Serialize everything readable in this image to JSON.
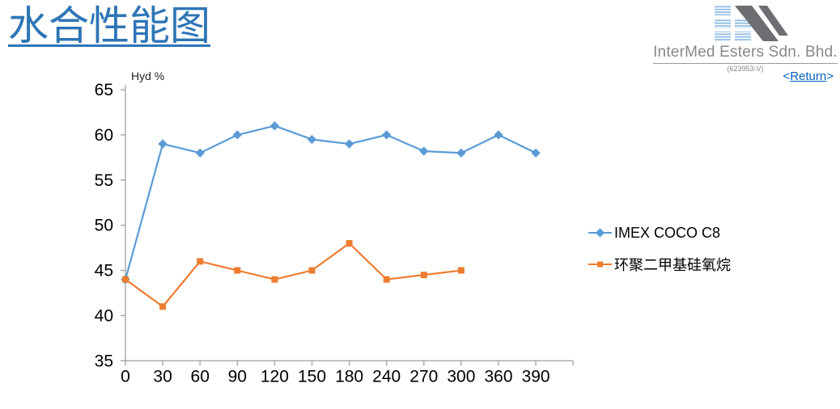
{
  "header": {
    "title": "水合性能图",
    "return_prefix": "<",
    "return_label": "Return",
    "return_suffix": ">"
  },
  "brand": {
    "company_name": "InterMed Esters Sdn. Bhd.",
    "registration_number": "(623953-V)",
    "logo_icon": "intermed-striped-logo"
  },
  "colors": {
    "title_blue": "#2E75B6",
    "link_blue": "#0563C1",
    "axis_gray": "#A6A6A6",
    "company_gray": "#85878A",
    "logo_gray": "#6D6E71",
    "logo_stripe_blue": "#8FBCE6",
    "series_blue": "#5B9BD5",
    "series_orange": "#ED7D31"
  },
  "chart_data": {
    "type": "line",
    "title": "",
    "axis_title": "Hyd %",
    "xlabel": "",
    "ylabel": "Hyd %",
    "categories": [
      "0",
      "30",
      "60",
      "90",
      "120",
      "150",
      "180",
      "240",
      "270",
      "300",
      "360",
      "390"
    ],
    "series": [
      {
        "name": "IMEX COCO C8",
        "color": "#5B9BD5",
        "marker": "diamond",
        "values": [
          44,
          59,
          58,
          60,
          61,
          59.5,
          59,
          60,
          58.2,
          58,
          60,
          58
        ]
      },
      {
        "name": "环聚二甲基硅氧烷",
        "color": "#ED7D31",
        "marker": "square",
        "values": [
          44,
          41,
          46,
          45,
          44,
          45,
          48,
          44,
          44.5,
          45,
          null,
          null
        ]
      }
    ],
    "ylim": [
      35,
      65
    ],
    "ytick_step": 5,
    "grid": false,
    "legend_position": "right"
  }
}
